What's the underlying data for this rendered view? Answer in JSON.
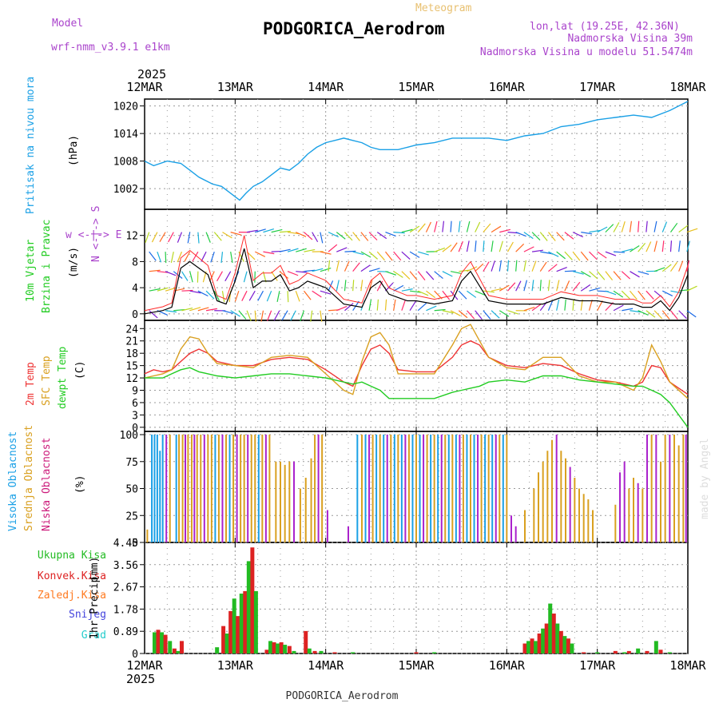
{
  "header": {
    "model_label": "Model",
    "model_name": "wrf-nmm_v3.9.1 e1km",
    "product": "Meteogram",
    "station": "PODGORICA_Aerodrom",
    "lonlat": "lon,lat (19.25E, 42.36N)",
    "elevation": "Nadmorska Visina 39m",
    "model_elevation": "Nadmorska Visina u modelu 51.5474m",
    "year": "2025",
    "footer_station": "PODGORICA_Aerodrom",
    "credit": "made by Angel"
  },
  "colors": {
    "pressure": "#1aa0e6",
    "wind_speed": "#000000",
    "wind_red": "#ff2a2a",
    "t2m": "#ee3333",
    "tsfc": "#d9a020",
    "tdew": "#22cc22",
    "cloud_high": "#1aa0e6",
    "cloud_mid": "#d9a020",
    "cloud_low": "#aa22cc",
    "precip_total": "#22bb22",
    "precip_conv": "#dd2222",
    "precip_frz": "#ff7a20",
    "precip_snow": "#4444dd",
    "precip_hail": "#22cccc"
  },
  "x_axis": {
    "tick_labels": [
      "12MAR",
      "13MAR",
      "14MAR",
      "15MAR",
      "16MAR",
      "17MAR",
      "18MAR"
    ]
  },
  "chart_data": [
    {
      "type": "line",
      "id": "pressure",
      "ylabel": "Pritisak na nivou mora",
      "unit": "(hPa)",
      "yticks": [
        1002,
        1008,
        1014,
        1020
      ],
      "ylim": [
        997.5,
        1021.5
      ],
      "x": [
        0,
        0.1,
        0.25,
        0.4,
        0.5,
        0.6,
        0.75,
        0.85,
        0.95,
        1.05,
        1.12,
        1.2,
        1.3,
        1.4,
        1.5,
        1.6,
        1.7,
        1.8,
        1.9,
        2.0,
        2.1,
        2.2,
        2.3,
        2.4,
        2.5,
        2.6,
        2.7,
        2.8,
        2.9,
        3.0,
        3.2,
        3.4,
        3.6,
        3.8,
        4.0,
        4.2,
        4.4,
        4.6,
        4.8,
        5.0,
        5.2,
        5.4,
        5.6,
        5.8,
        6.0
      ],
      "y": [
        1008,
        1007,
        1008,
        1007.5,
        1006,
        1004.5,
        1003,
        1002.5,
        1001,
        999.5,
        1001,
        1002.5,
        1003.5,
        1005,
        1006.5,
        1006,
        1007.5,
        1009.5,
        1011,
        1012,
        1012.5,
        1013,
        1012.5,
        1012,
        1011,
        1010.5,
        1010.5,
        1010.5,
        1011,
        1011.5,
        1012,
        1013,
        1013,
        1013,
        1012.5,
        1013.5,
        1014,
        1015.5,
        1016,
        1017,
        1017.5,
        1018,
        1017.5,
        1019,
        1021
      ]
    },
    {
      "type": "line",
      "id": "wind",
      "ylabel": "10m Vjetar",
      "ylabel2": "Brzina i Pravac",
      "unit": "(m/s)",
      "compass": "w <-|-> E",
      "compass_ns": "N <-|-> S",
      "yticks": [
        0,
        4,
        8,
        12
      ],
      "ylim": [
        -1,
        16
      ],
      "x": [
        0,
        0.2,
        0.3,
        0.4,
        0.5,
        0.6,
        0.7,
        0.8,
        0.9,
        1.0,
        1.1,
        1.2,
        1.3,
        1.4,
        1.5,
        1.6,
        1.7,
        1.8,
        1.9,
        2.0,
        2.2,
        2.4,
        2.5,
        2.6,
        2.7,
        2.8,
        2.9,
        3.0,
        3.2,
        3.4,
        3.5,
        3.6,
        3.8,
        4.0,
        4.2,
        4.4,
        4.5,
        4.6,
        4.8,
        5.0,
        5.2,
        5.4,
        5.5,
        5.6,
        5.7,
        5.8,
        5.9,
        6.0
      ],
      "y": [
        0,
        0.5,
        1,
        7,
        8,
        7,
        6,
        2,
        1.5,
        5,
        10,
        4,
        5,
        5,
        6,
        3.5,
        4,
        5,
        4.5,
        4,
        1.5,
        1,
        4,
        5,
        3,
        2.5,
        2,
        2,
        1.5,
        2,
        5,
        6.5,
        2,
        1.5,
        1.5,
        1.5,
        2,
        2.5,
        2,
        2,
        1.5,
        1.5,
        1,
        1,
        2,
        0.5,
        2.5,
        6
      ]
    },
    {
      "type": "line",
      "id": "temperature",
      "series_labels": [
        "2m Temp",
        "SFC Temp",
        "dewpt Temp"
      ],
      "unit": "(C)",
      "yticks": [
        0,
        3,
        6,
        9,
        12,
        15,
        18,
        21,
        24
      ],
      "ylim": [
        -1,
        26
      ],
      "x": [
        0,
        0.1,
        0.2,
        0.3,
        0.4,
        0.5,
        0.6,
        0.7,
        0.8,
        1.0,
        1.2,
        1.4,
        1.6,
        1.8,
        2.0,
        2.2,
        2.3,
        2.4,
        2.5,
        2.6,
        2.7,
        2.8,
        3.0,
        3.2,
        3.4,
        3.5,
        3.6,
        3.7,
        3.8,
        4.0,
        4.2,
        4.4,
        4.6,
        4.8,
        5.0,
        5.2,
        5.4,
        5.5,
        5.6,
        5.7,
        5.8,
        6.0
      ],
      "series": [
        {
          "values": [
            13,
            14,
            13.5,
            14,
            16,
            18,
            19,
            18,
            16,
            15,
            15,
            16.5,
            17,
            16.5,
            14,
            11,
            10,
            15,
            19,
            20,
            18,
            14,
            13.5,
            13.5,
            17,
            20,
            21,
            20,
            17,
            15,
            14.5,
            15.5,
            15,
            13,
            11.5,
            11,
            10,
            11,
            15,
            14.5,
            11,
            8
          ]
        },
        {
          "values": [
            12,
            12.5,
            13,
            14,
            19,
            22,
            21.5,
            18,
            15.5,
            15,
            14.5,
            17,
            17.5,
            17,
            13,
            9,
            8,
            16,
            22,
            23,
            20,
            13,
            13,
            13,
            20,
            24,
            25,
            21,
            17,
            14.5,
            14,
            17,
            17,
            12.5,
            11,
            11,
            9,
            12,
            20,
            16,
            11,
            7
          ]
        },
        {
          "values": [
            12,
            12,
            12,
            13,
            14,
            14.5,
            13.5,
            13,
            12.5,
            12,
            12.5,
            13,
            13,
            12.5,
            12,
            11,
            10.5,
            11,
            10,
            9,
            7,
            7,
            7,
            7,
            8.5,
            9,
            9.5,
            10,
            11,
            11.5,
            11,
            12.5,
            12.5,
            11.5,
            11,
            10.5,
            10,
            10,
            9,
            8,
            6,
            0
          ]
        }
      ]
    },
    {
      "type": "bar",
      "id": "clouds",
      "series_labels": [
        "Visoka Oblacnost",
        "Srednja Oblacnost",
        "Niska Oblacnost"
      ],
      "unit": "(%)",
      "yticks": [
        0,
        25,
        50,
        75,
        100
      ],
      "ylim": [
        0,
        103
      ],
      "bars": [
        [
          0.03,
          "m",
          12
        ],
        [
          0.08,
          "h",
          100
        ],
        [
          0.11,
          "h",
          100
        ],
        [
          0.14,
          "h",
          100
        ],
        [
          0.17,
          "h",
          85
        ],
        [
          0.2,
          "h",
          100
        ],
        [
          0.24,
          "l",
          100
        ],
        [
          0.28,
          "m",
          100
        ],
        [
          0.35,
          "h",
          100
        ],
        [
          0.38,
          "m",
          100
        ],
        [
          0.42,
          "m",
          100
        ],
        [
          0.45,
          "l",
          100
        ],
        [
          0.48,
          "m",
          100
        ],
        [
          0.52,
          "m",
          100
        ],
        [
          0.55,
          "l",
          100
        ],
        [
          0.58,
          "m",
          100
        ],
        [
          0.62,
          "m",
          100
        ],
        [
          0.66,
          "l",
          100
        ],
        [
          0.7,
          "m",
          100
        ],
        [
          0.74,
          "m",
          100
        ],
        [
          0.78,
          "h",
          100
        ],
        [
          0.82,
          "m",
          100
        ],
        [
          0.86,
          "l",
          100
        ],
        [
          0.9,
          "m",
          100
        ],
        [
          0.94,
          "h",
          100
        ],
        [
          0.98,
          "m",
          100
        ],
        [
          1.02,
          "l",
          100
        ],
        [
          1.06,
          "m",
          100
        ],
        [
          1.1,
          "m",
          100
        ],
        [
          1.14,
          "l",
          100
        ],
        [
          1.18,
          "m",
          100
        ],
        [
          1.22,
          "m",
          100
        ],
        [
          1.26,
          "h",
          100
        ],
        [
          1.3,
          "m",
          100
        ],
        [
          1.34,
          "l",
          100
        ],
        [
          1.38,
          "m",
          100
        ],
        [
          1.45,
          "m",
          75
        ],
        [
          1.5,
          "m",
          75
        ],
        [
          1.55,
          "m",
          72
        ],
        [
          1.6,
          "m",
          75
        ],
        [
          1.65,
          "l",
          75
        ],
        [
          1.72,
          "m",
          50
        ],
        [
          1.78,
          "m",
          60
        ],
        [
          1.84,
          "m",
          78
        ],
        [
          1.88,
          "m",
          100
        ],
        [
          1.92,
          "l",
          100
        ],
        [
          1.96,
          "m",
          100
        ],
        [
          2.02,
          "l",
          30
        ],
        [
          2.25,
          "l",
          15
        ],
        [
          2.35,
          "h",
          100
        ],
        [
          2.4,
          "m",
          100
        ],
        [
          2.44,
          "h",
          100
        ],
        [
          2.48,
          "l",
          100
        ],
        [
          2.52,
          "m",
          100
        ],
        [
          2.56,
          "h",
          100
        ],
        [
          2.6,
          "m",
          100
        ],
        [
          2.64,
          "h",
          100
        ],
        [
          2.68,
          "l",
          100
        ],
        [
          2.72,
          "m",
          100
        ],
        [
          2.76,
          "h",
          100
        ],
        [
          2.8,
          "m",
          100
        ],
        [
          2.84,
          "h",
          100
        ],
        [
          2.88,
          "l",
          100
        ],
        [
          2.92,
          "m",
          100
        ],
        [
          2.96,
          "h",
          100
        ],
        [
          3.0,
          "m",
          100
        ],
        [
          3.04,
          "h",
          100
        ],
        [
          3.08,
          "l",
          100
        ],
        [
          3.12,
          "m",
          100
        ],
        [
          3.16,
          "h",
          100
        ],
        [
          3.2,
          "m",
          100
        ],
        [
          3.24,
          "h",
          100
        ],
        [
          3.28,
          "l",
          100
        ],
        [
          3.32,
          "m",
          100
        ],
        [
          3.36,
          "h",
          100
        ],
        [
          3.4,
          "m",
          100
        ],
        [
          3.44,
          "h",
          100
        ],
        [
          3.48,
          "l",
          100
        ],
        [
          3.52,
          "m",
          100
        ],
        [
          3.56,
          "h",
          100
        ],
        [
          3.6,
          "m",
          100
        ],
        [
          3.64,
          "h",
          100
        ],
        [
          3.68,
          "l",
          100
        ],
        [
          3.72,
          "m",
          100
        ],
        [
          3.76,
          "h",
          100
        ],
        [
          3.8,
          "m",
          100
        ],
        [
          3.84,
          "h",
          100
        ],
        [
          3.88,
          "l",
          100
        ],
        [
          3.92,
          "m",
          100
        ],
        [
          3.96,
          "h",
          100
        ],
        [
          4.0,
          "m",
          100
        ],
        [
          4.05,
          "l",
          25
        ],
        [
          4.1,
          "l",
          15
        ],
        [
          4.2,
          "m",
          30
        ],
        [
          4.3,
          "m",
          50
        ],
        [
          4.35,
          "m",
          65
        ],
        [
          4.4,
          "m",
          75
        ],
        [
          4.45,
          "m",
          85
        ],
        [
          4.5,
          "m",
          95
        ],
        [
          4.55,
          "l",
          100
        ],
        [
          4.6,
          "m",
          85
        ],
        [
          4.65,
          "m",
          78
        ],
        [
          4.7,
          "l",
          70
        ],
        [
          4.75,
          "m",
          60
        ],
        [
          4.8,
          "m",
          50
        ],
        [
          4.85,
          "m",
          45
        ],
        [
          4.9,
          "m",
          40
        ],
        [
          4.95,
          "m",
          30
        ],
        [
          5.2,
          "m",
          35
        ],
        [
          5.25,
          "l",
          65
        ],
        [
          5.3,
          "l",
          75
        ],
        [
          5.35,
          "m",
          50
        ],
        [
          5.4,
          "m",
          60
        ],
        [
          5.45,
          "l",
          55
        ],
        [
          5.5,
          "m",
          50
        ],
        [
          5.55,
          "l",
          100
        ],
        [
          5.6,
          "m",
          100
        ],
        [
          5.65,
          "l",
          100
        ],
        [
          5.7,
          "m",
          75
        ],
        [
          5.75,
          "m",
          100
        ],
        [
          5.8,
          "l",
          100
        ],
        [
          5.85,
          "m",
          100
        ],
        [
          5.9,
          "m",
          90
        ],
        [
          5.95,
          "m",
          100
        ],
        [
          5.98,
          "l",
          100
        ]
      ]
    },
    {
      "type": "bar",
      "id": "precip",
      "series_labels": [
        "Ukupna Kisa",
        "Konvek.Kisa",
        "Zaledj.Kisa",
        "Snijeg",
        "Grad"
      ],
      "ylabel": "1hr Precip",
      "unit": "(mm)",
      "yticks": [
        0,
        0.89,
        1.78,
        2.67,
        3.56,
        4.45
      ],
      "ylim": [
        0,
        4.45
      ],
      "bars": [
        [
          0.11,
          0.85
        ],
        [
          0.15,
          0.95
        ],
        [
          0.19,
          0.85
        ],
        [
          0.23,
          0.75
        ],
        [
          0.28,
          0.5
        ],
        [
          0.33,
          0.2
        ],
        [
          0.37,
          0.1
        ],
        [
          0.41,
          0.5
        ],
        [
          0.8,
          0.25
        ],
        [
          0.87,
          1.1
        ],
        [
          0.91,
          0.8
        ],
        [
          0.95,
          1.7
        ],
        [
          0.99,
          2.2
        ],
        [
          1.03,
          1.5
        ],
        [
          1.07,
          2.4
        ],
        [
          1.11,
          2.5
        ],
        [
          1.15,
          3.7
        ],
        [
          1.19,
          4.25
        ],
        [
          1.23,
          2.5
        ],
        [
          1.35,
          0.15
        ],
        [
          1.39,
          0.5
        ],
        [
          1.43,
          0.45
        ],
        [
          1.47,
          0.4
        ],
        [
          1.51,
          0.45
        ],
        [
          1.55,
          0.35
        ],
        [
          1.6,
          0.3
        ],
        [
          1.65,
          0.1
        ],
        [
          1.78,
          0.9
        ],
        [
          1.82,
          0.2
        ],
        [
          1.88,
          0.1
        ],
        [
          1.95,
          0.1
        ],
        [
          2.1,
          0.05
        ],
        [
          2.3,
          0.05
        ],
        [
          3.0,
          0.05
        ],
        [
          3.2,
          0.05
        ],
        [
          4.2,
          0.4
        ],
        [
          4.24,
          0.5
        ],
        [
          4.28,
          0.6
        ],
        [
          4.32,
          0.5
        ],
        [
          4.36,
          0.8
        ],
        [
          4.4,
          1.0
        ],
        [
          4.44,
          1.2
        ],
        [
          4.48,
          2.0
        ],
        [
          4.52,
          1.6
        ],
        [
          4.56,
          1.2
        ],
        [
          4.6,
          0.9
        ],
        [
          4.64,
          0.7
        ],
        [
          4.68,
          0.6
        ],
        [
          4.72,
          0.4
        ],
        [
          4.85,
          0.05
        ],
        [
          5.0,
          0.05
        ],
        [
          5.2,
          0.1
        ],
        [
          5.3,
          0.05
        ],
        [
          5.35,
          0.1
        ],
        [
          5.45,
          0.2
        ],
        [
          5.55,
          0.1
        ],
        [
          5.65,
          0.5
        ],
        [
          5.7,
          0.15
        ],
        [
          5.8,
          0.05
        ]
      ]
    }
  ]
}
